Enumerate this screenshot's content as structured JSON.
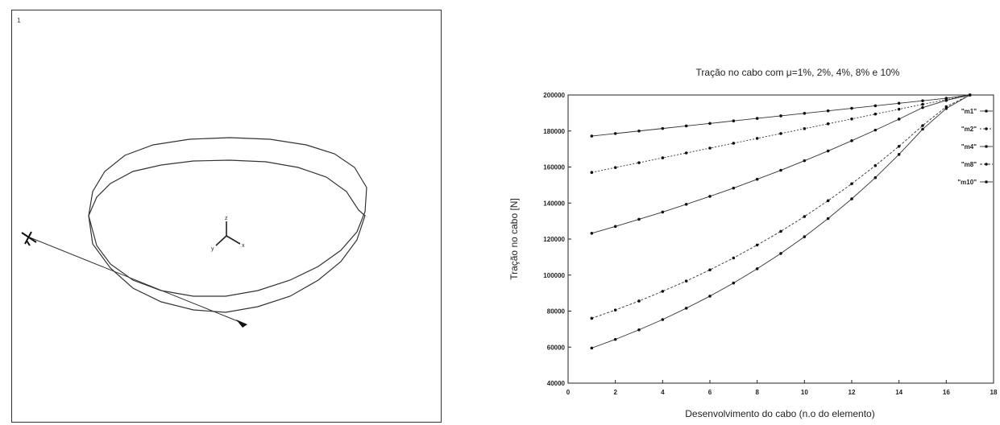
{
  "left_panel": {
    "marker": "1",
    "axis_labels": {
      "z": "z",
      "x": "x",
      "y": "y"
    }
  },
  "chart_data": {
    "type": "line",
    "title": "Tração no cabo com μ=1%, 2%, 4%, 8% e 10%",
    "xlabel": "Desenvolvimento do cabo (n.o do elemento)",
    "ylabel": "Tração no cabo [N]",
    "xlim": [
      0,
      18
    ],
    "ylim": [
      40000,
      200000
    ],
    "xticks": [
      "0",
      "2",
      "4",
      "6",
      "8",
      "10",
      "12",
      "14",
      "16",
      "18"
    ],
    "yticks": [
      "40000",
      "60000",
      "80000",
      "100000",
      "120000",
      "140000",
      "160000",
      "180000",
      "200000"
    ],
    "x": [
      1,
      2,
      3,
      4,
      5,
      6,
      7,
      8,
      9,
      10,
      11,
      12,
      13,
      14,
      15,
      16,
      17
    ],
    "series": [
      {
        "name": "\"m1\"",
        "values": [
          177200,
          178600,
          180000,
          181400,
          182800,
          184200,
          185600,
          187000,
          188400,
          189800,
          191200,
          192600,
          194000,
          195400,
          196800,
          198200,
          200000
        ]
      },
      {
        "name": "\"m2\"",
        "values": [
          157000,
          159700,
          162400,
          165100,
          167800,
          170500,
          173200,
          175900,
          178600,
          181300,
          184000,
          186700,
          189400,
          192100,
          194800,
          197400,
          200000
        ]
      },
      {
        "name": "\"m4\"",
        "values": [
          123200,
          127000,
          131000,
          135000,
          139300,
          143700,
          148300,
          153200,
          158200,
          163500,
          168900,
          174600,
          180500,
          186600,
          193000,
          197000,
          200000
        ]
      },
      {
        "name": "\"m8\"",
        "values": [
          76000,
          80600,
          85600,
          91000,
          96700,
          102900,
          109500,
          116700,
          124300,
          132500,
          141300,
          150700,
          160800,
          171500,
          183000,
          193500,
          200000
        ]
      },
      {
        "name": "\"m10\"",
        "values": [
          59500,
          64300,
          69600,
          75300,
          81600,
          88300,
          95600,
          103500,
          112000,
          121300,
          131400,
          142300,
          154100,
          167000,
          181000,
          192500,
          200000
        ]
      }
    ],
    "grid": false,
    "legend": "top-right"
  }
}
